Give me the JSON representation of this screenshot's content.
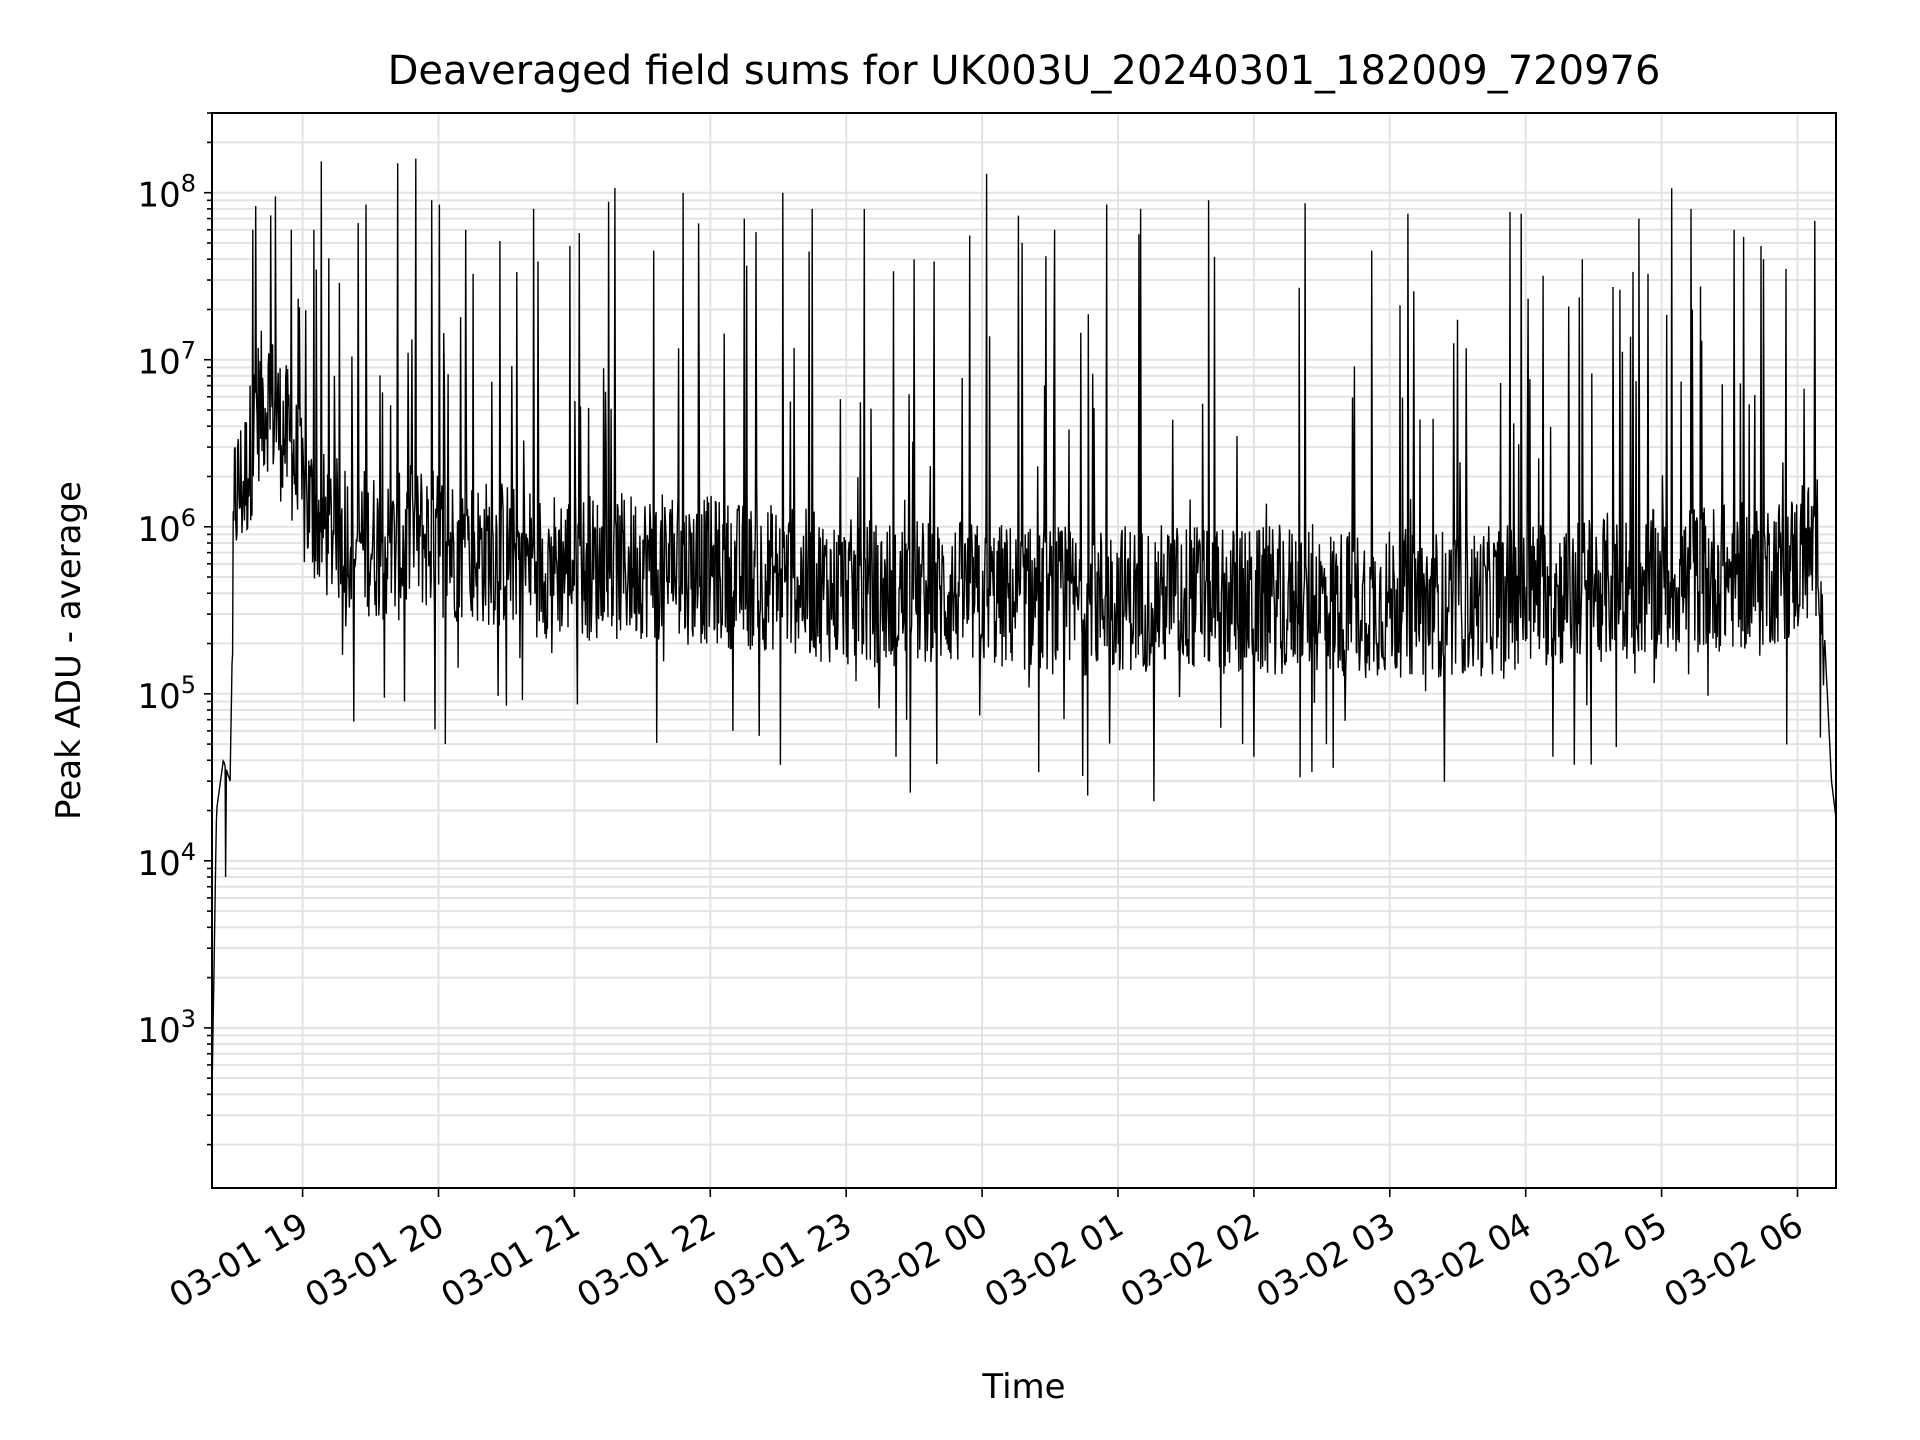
{
  "chart_data": {
    "type": "line",
    "title": "Deaveraged field sums for UK003U_20240301_182009_720976",
    "xlabel": "Time",
    "ylabel": "Peak ADU - average",
    "yscale": "log",
    "ylim": [
      110,
      300000000
    ],
    "xlim": [
      "2024-03-01 18:20",
      "2024-03-02 06:17"
    ],
    "grid": "major and minor, light gray",
    "legend": "none",
    "line_color": "#000000",
    "x_ticks": [
      "03-01 19",
      "03-01 20",
      "03-01 21",
      "03-01 22",
      "03-01 23",
      "03-02 00",
      "03-02 01",
      "03-02 02",
      "03-02 03",
      "03-02 04",
      "03-02 05",
      "03-02 06"
    ],
    "y_ticks": [
      {
        "base": "10",
        "exp": "3",
        "value": 1000
      },
      {
        "base": "10",
        "exp": "4",
        "value": 10000
      },
      {
        "base": "10",
        "exp": "5",
        "value": 100000
      },
      {
        "base": "10",
        "exp": "6",
        "value": 1000000
      },
      {
        "base": "10",
        "exp": "7",
        "value": 10000000
      },
      {
        "base": "10",
        "exp": "8",
        "value": 100000000
      }
    ],
    "series": [
      {
        "x": [
          "2024-03-01 18:20",
          "2024-03-01 18:22",
          "2024-03-01 18:25",
          "2024-03-01 18:28",
          "2024-03-01 18:30",
          "2024-03-01 18:35",
          "2024-03-01 18:40",
          "2024-03-01 18:45",
          "2024-03-01 18:50",
          "2024-03-01 18:55",
          "2024-03-01 19:00",
          "2024-03-01 19:10",
          "2024-03-01 19:20",
          "2024-03-01 19:30",
          "2024-03-01 19:40",
          "2024-03-01 19:50",
          "2024-03-01 20:00",
          "2024-03-01 20:15",
          "2024-03-01 20:30",
          "2024-03-01 20:45",
          "2024-03-01 21:00",
          "2024-03-01 21:15",
          "2024-03-01 21:30",
          "2024-03-01 21:45",
          "2024-03-01 22:00",
          "2024-03-01 22:15",
          "2024-03-01 22:30",
          "2024-03-01 22:45",
          "2024-03-01 23:00",
          "2024-03-01 23:20",
          "2024-03-01 23:40",
          "2024-03-02 00:00",
          "2024-03-02 00:20",
          "2024-03-02 00:40",
          "2024-03-02 01:00",
          "2024-03-02 01:20",
          "2024-03-02 01:40",
          "2024-03-02 02:00",
          "2024-03-02 02:20",
          "2024-03-02 02:40",
          "2024-03-02 03:00",
          "2024-03-02 03:20",
          "2024-03-02 03:40",
          "2024-03-02 04:00",
          "2024-03-02 04:20",
          "2024-03-02 04:40",
          "2024-03-02 05:00",
          "2024-03-02 05:20",
          "2024-03-02 05:40",
          "2024-03-02 06:00",
          "2024-03-02 06:10",
          "2024-03-02 06:15",
          "2024-03-02 06:17"
        ],
        "y": [
          400,
          20000,
          40000,
          30000,
          1500000,
          2000000,
          5000000,
          6000000,
          4000000,
          3000000,
          1500000,
          1000000,
          900000,
          800000,
          700000,
          900000,
          800000,
          700000,
          700000,
          600000,
          600000,
          550000,
          600000,
          550000,
          550000,
          500000,
          500000,
          450000,
          400000,
          400000,
          400000,
          380000,
          380000,
          350000,
          380000,
          380000,
          380000,
          350000,
          380000,
          350000,
          350000,
          350000,
          350000,
          400000,
          400000,
          450000,
          450000,
          500000,
          500000,
          600000,
          800000,
          30000,
          18000
        ],
        "spikes": [
          {
            "x": "2024-03-01 18:38",
            "y": 60000000
          },
          {
            "x": "2024-03-01 18:48",
            "y": 95000000
          },
          {
            "x": "2024-03-01 18:55",
            "y": 60000000
          },
          {
            "x": "2024-03-01 19:05",
            "y": 60000000
          },
          {
            "x": "2024-03-01 19:28",
            "y": 85000000
          },
          {
            "x": "2024-03-01 19:42",
            "y": 150000000
          },
          {
            "x": "2024-03-01 19:50",
            "y": 160000000
          },
          {
            "x": "2024-03-01 19:57",
            "y": 90000000
          },
          {
            "x": "2024-03-01 20:12",
            "y": 60000000
          },
          {
            "x": "2024-03-01 20:42",
            "y": 80000000
          },
          {
            "x": "2024-03-01 20:58",
            "y": 48000000
          },
          {
            "x": "2024-03-01 21:35",
            "y": 45000000
          },
          {
            "x": "2024-03-01 21:48",
            "y": 100000000
          },
          {
            "x": "2024-03-01 22:15",
            "y": 70000000
          },
          {
            "x": "2024-03-01 22:32",
            "y": 100000000
          },
          {
            "x": "2024-03-01 22:45",
            "y": 80000000
          },
          {
            "x": "2024-03-01 23:08",
            "y": 80000000
          },
          {
            "x": "2024-03-01 23:30",
            "y": 40000000
          },
          {
            "x": "2024-03-02 00:02",
            "y": 130000000
          },
          {
            "x": "2024-03-02 00:32",
            "y": 60000000
          },
          {
            "x": "2024-03-02 00:55",
            "y": 85000000
          },
          {
            "x": "2024-03-02 01:10",
            "y": 80000000
          },
          {
            "x": "2024-03-02 01:40",
            "y": 90000000
          },
          {
            "x": "2024-03-02 02:20",
            "y": 27000000
          },
          {
            "x": "2024-03-02 02:52",
            "y": 45000000
          },
          {
            "x": "2024-03-02 03:08",
            "y": 75000000
          },
          {
            "x": "2024-03-02 03:58",
            "y": 75000000
          },
          {
            "x": "2024-03-02 04:25",
            "y": 40000000
          },
          {
            "x": "2024-03-02 04:50",
            "y": 70000000
          },
          {
            "x": "2024-03-02 05:13",
            "y": 80000000
          },
          {
            "x": "2024-03-02 05:32",
            "y": 60000000
          },
          {
            "x": "2024-03-02 05:45",
            "y": 40000000
          }
        ],
        "dips": [
          {
            "x": "2024-03-01 18:26",
            "y": 8000
          },
          {
            "x": "2024-03-01 19:45",
            "y": 90000
          },
          {
            "x": "2024-03-01 20:03",
            "y": 50000
          },
          {
            "x": "2024-03-01 20:30",
            "y": 85000
          },
          {
            "x": "2024-03-01 22:10",
            "y": 60000
          },
          {
            "x": "2024-03-01 23:22",
            "y": 42000
          },
          {
            "x": "2024-03-01 23:40",
            "y": 38000
          },
          {
            "x": "2024-03-02 00:25",
            "y": 34000
          },
          {
            "x": "2024-03-02 01:55",
            "y": 50000
          },
          {
            "x": "2024-03-02 02:00",
            "y": 42000
          },
          {
            "x": "2024-03-02 02:32",
            "y": 50000
          },
          {
            "x": "2024-03-02 02:35",
            "y": 36000
          },
          {
            "x": "2024-03-02 04:12",
            "y": 42000
          },
          {
            "x": "2024-03-02 04:40",
            "y": 48000
          }
        ]
      }
    ]
  }
}
